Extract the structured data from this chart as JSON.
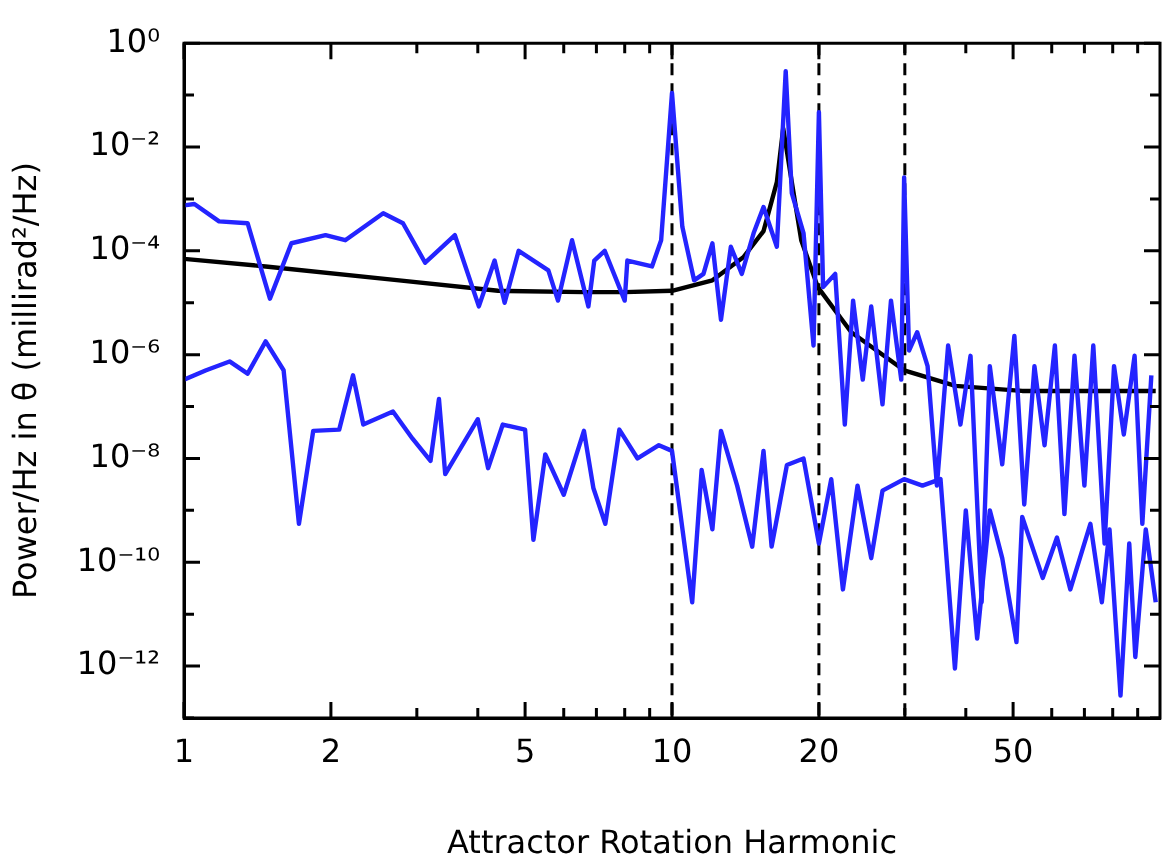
{
  "chart_data": {
    "type": "line",
    "xlabel": "Attractor Rotation Harmonic",
    "ylabel": "Power/Hz in θ (millirad²/Hz)",
    "log": "xy",
    "grid": false,
    "legend": false,
    "marker": "none",
    "line_style": "solid",
    "xlim": [
      1,
      100
    ],
    "ylim": [
      1e-13,
      1
    ],
    "xticks": [
      1,
      2,
      {
        "value": 3,
        "label": null
      },
      {
        "value": 4,
        "label": null
      },
      5,
      {
        "value": 6,
        "label": null
      },
      {
        "value": 7,
        "label": null
      },
      {
        "value": 8,
        "label": null
      },
      {
        "value": 9,
        "label": null
      },
      10,
      20,
      {
        "value": 30,
        "label": null
      },
      {
        "value": 40,
        "label": null
      },
      50,
      {
        "value": 60,
        "label": null
      },
      {
        "value": 70,
        "label": null
      },
      {
        "value": 80,
        "label": null
      },
      {
        "value": 90,
        "label": null
      }
    ],
    "yticks": [
      {
        "value": 1e-13,
        "label": null
      },
      {
        "value": 1e-12,
        "label": "10⁻¹²"
      },
      {
        "value": 1e-11,
        "label": null
      },
      {
        "value": 1e-10,
        "label": "10⁻¹⁰"
      },
      {
        "value": 1e-09,
        "label": null
      },
      {
        "value": 1e-08,
        "label": "10⁻⁸"
      },
      {
        "value": 1e-07,
        "label": null
      },
      {
        "value": 1e-06,
        "label": "10⁻⁶"
      },
      {
        "value": 1e-05,
        "label": null
      },
      {
        "value": 0.0001,
        "label": "10⁻⁴"
      },
      {
        "value": 0.001,
        "label": null
      },
      {
        "value": 0.01,
        "label": "10⁻²"
      },
      {
        "value": 0.1,
        "label": null
      },
      {
        "value": 1,
        "label": "10⁰"
      }
    ],
    "ref_lines": [
      {
        "axis": "x",
        "value": 10,
        "color": "#000000",
        "line_style": "dashed"
      },
      {
        "axis": "x",
        "value": 20,
        "color": "#000000",
        "line_style": "dashed"
      },
      {
        "axis": "x",
        "value": 30,
        "color": "#000000",
        "line_style": "dashed"
      }
    ],
    "series": [
      {
        "color": "#2424ff",
        "x": [
          1,
          1.05,
          1.18,
          1.35,
          1.5,
          1.66,
          1.95,
          2.14,
          2.56,
          2.81,
          3.12,
          3.59,
          4.02,
          4.33,
          4.54,
          4.85,
          5.58,
          5.84,
          6.24,
          6.74,
          6.93,
          7.28,
          8.0,
          8.1,
          9.1,
          9.5,
          10.0,
          10.5,
          11.1,
          11.6,
          12.1,
          12.6,
          13.2,
          13.9,
          14.7,
          15.4,
          16.4,
          17.1,
          17.6,
          18.6,
          19.5,
          20.0,
          20.4,
          21.6,
          22.6,
          23.5,
          24.6,
          25.6,
          27.0,
          28.1,
          29.5,
          29.9,
          30.6,
          31.8,
          33.4,
          34.9,
          36.8,
          39.0,
          40.9,
          43.1,
          44.8,
          47.5,
          50.3,
          52.7,
          55.3,
          58.0,
          60.9,
          63.7,
          66.8,
          70.0,
          73.0,
          77.0,
          80.5,
          84.3,
          88.7,
          92.0,
          96.0
        ],
        "values": [
          0.00075,
          0.0008,
          0.00037,
          0.00034,
          1.2e-05,
          0.00014,
          0.0002,
          0.00016,
          0.00053,
          0.00034,
          5.9e-05,
          0.0002,
          8.5e-06,
          6.5e-05,
          1e-05,
          0.0001,
          4.2e-05,
          1.1e-05,
          0.00016,
          8.5e-06,
          6.5e-05,
          0.0001,
          1.1e-05,
          6.5e-05,
          5e-05,
          0.00016,
          0.11,
          0.00029,
          2.7e-05,
          3.6e-05,
          0.00014,
          4.7e-06,
          0.00012,
          3.6e-05,
          0.00022,
          0.0007,
          0.00012,
          0.29,
          0.0013,
          0.00022,
          1.5e-06,
          0.047,
          2e-05,
          3.6e-05,
          4.5e-08,
          1.1e-05,
          3.3e-07,
          8.5e-06,
          1.1e-07,
          1.1e-05,
          3.3e-07,
          0.0026,
          1.2e-06,
          2.7e-06,
          6e-07,
          3e-09,
          1.5e-06,
          4.5e-08,
          9.5e-07,
          1.7e-11,
          6e-07,
          7.7e-09,
          2.3e-06,
          1.3e-09,
          6e-07,
          1.8e-08,
          1.5e-06,
          8.5e-10,
          9.5e-07,
          3e-09,
          1.5e-06,
          2.3e-10,
          6e-07,
          2.9e-08,
          9.5e-07,
          5.5e-10,
          4e-07
        ]
      },
      {
        "color": "#2424ff",
        "x": [
          1,
          1.11,
          1.24,
          1.35,
          1.47,
          1.6,
          1.72,
          1.84,
          2.08,
          2.22,
          2.33,
          2.68,
          2.94,
          3.2,
          3.33,
          3.43,
          3.66,
          4.0,
          4.2,
          4.5,
          5.0,
          5.2,
          5.5,
          6.0,
          6.6,
          6.9,
          7.3,
          7.8,
          8.5,
          9.4,
          10,
          11.0,
          11.5,
          12.1,
          12.6,
          13.6,
          14.6,
          15.4,
          16.0,
          17.2,
          18.6,
          20.0,
          21.2,
          22.4,
          24.0,
          25.6,
          27.0,
          29.9,
          32.6,
          35.5,
          38.0,
          40.0,
          42.2,
          44.8,
          47.5,
          50.8,
          52.2,
          57.5,
          61.5,
          65.5,
          72.0,
          76.0,
          78.8,
          83.0,
          86.5,
          89.0,
          93.5,
          98
        ],
        "values": [
          3.3e-07,
          5e-07,
          7.4e-07,
          4.3e-07,
          1.8e-06,
          5e-07,
          5.5e-10,
          3.4e-08,
          3.6e-08,
          4e-07,
          4.5e-08,
          8e-08,
          2.4e-08,
          9e-09,
          1.4e-07,
          5e-09,
          1.4e-08,
          5.7e-08,
          6.5e-09,
          4.5e-08,
          3.6e-08,
          2.7e-10,
          1.2e-08,
          2e-09,
          3.4e-08,
          2.7e-09,
          5.5e-10,
          3.6e-08,
          1e-08,
          1.8e-08,
          1.4e-08,
          1.7e-11,
          6e-09,
          4.3e-10,
          3.4e-08,
          3e-09,
          2e-10,
          1.4e-08,
          2e-10,
          7.5e-09,
          1e-08,
          2.3e-10,
          4e-09,
          3e-11,
          3e-09,
          1.2e-10,
          2.4e-09,
          4e-09,
          3e-09,
          4e-09,
          9e-13,
          1e-09,
          3.4e-12,
          1e-09,
          1.2e-10,
          2.9e-12,
          7.5e-10,
          5e-11,
          3e-10,
          3e-11,
          5.5e-10,
          1.7e-11,
          4.3e-10,
          2.7e-13,
          2.3e-10,
          1.5e-12,
          4.3e-10,
          1.7e-11
        ]
      },
      {
        "color": "#000000",
        "x": [
          1,
          1.47,
          2.76,
          4.4,
          6.6,
          8.0,
          10,
          12.1,
          14.0,
          15.4,
          16.4,
          16.9,
          17.6,
          18.4,
          19.9,
          23.3,
          29.9,
          38.1,
          52.2,
          98
        ],
        "values": [
          7e-05,
          5e-05,
          2.7e-05,
          1.7e-05,
          1.6e-05,
          1.6e-05,
          1.7e-05,
          2.7e-05,
          7.5e-05,
          0.00024,
          0.0021,
          0.023,
          0.0021,
          0.00016,
          2e-05,
          2.7e-06,
          5e-07,
          2.5e-07,
          2e-07,
          2e-07
        ]
      }
    ]
  }
}
